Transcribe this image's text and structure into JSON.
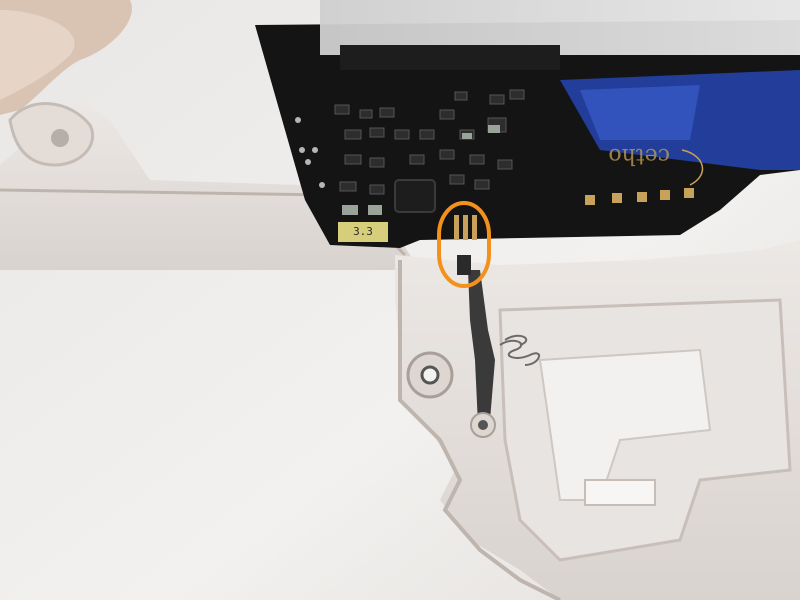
{
  "photo": {
    "subject": "",
    "pcb_label_text": "3.3",
    "brand_text": "cetho",
    "colors": {
      "background": "#efeeed",
      "pcb": "#121212",
      "housing": "#e6e2df",
      "highlight": "#f2921d",
      "gold": "#c8a25a"
    }
  }
}
